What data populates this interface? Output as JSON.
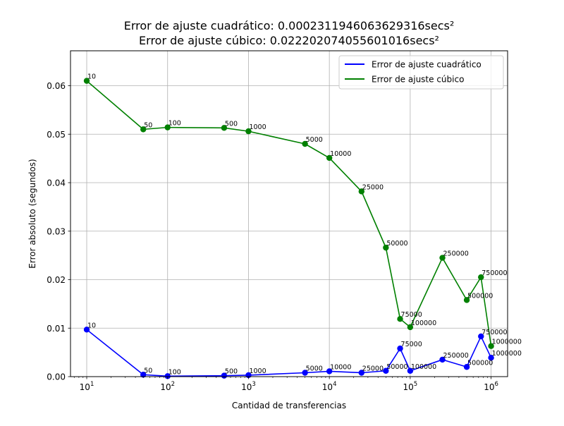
{
  "chart_data": {
    "type": "line",
    "title_lines": [
      "Error de ajuste cuadrático: 0.0002311946063629316secs²",
      "Error de ajuste cúbico: 0.022202074055601016secs²"
    ],
    "xlabel": "Cantidad de transferencias",
    "ylabel": "Error absoluto (segundos)",
    "x_scale": "log",
    "xlim": [
      6.3,
      1600000
    ],
    "ylim": [
      0,
      0.0672
    ],
    "grid": true,
    "legend_position": "top-right",
    "x_ticks": [
      {
        "value": 10,
        "base": "10",
        "exp": "1"
      },
      {
        "value": 100,
        "base": "10",
        "exp": "2"
      },
      {
        "value": 1000,
        "base": "10",
        "exp": "3"
      },
      {
        "value": 10000,
        "base": "10",
        "exp": "4"
      },
      {
        "value": 100000,
        "base": "10",
        "exp": "5"
      },
      {
        "value": 1000000,
        "base": "10",
        "exp": "6"
      }
    ],
    "y_ticks": [
      {
        "value": 0.0,
        "label": "0.00"
      },
      {
        "value": 0.01,
        "label": "0.01"
      },
      {
        "value": 0.02,
        "label": "0.02"
      },
      {
        "value": 0.03,
        "label": "0.03"
      },
      {
        "value": 0.04,
        "label": "0.04"
      },
      {
        "value": 0.05,
        "label": "0.05"
      },
      {
        "value": 0.06,
        "label": "0.06"
      }
    ],
    "x": [
      10,
      50,
      100,
      500,
      1000,
      5000,
      10000,
      25000,
      50000,
      75000,
      100000,
      250000,
      500000,
      750000,
      1000000
    ],
    "point_labels": [
      "10",
      "50",
      "100",
      "500",
      "1000",
      "5000",
      "10000",
      "25000",
      "50000",
      "75000",
      "100000",
      "250000",
      "500000",
      "750000",
      "1000000"
    ],
    "series": [
      {
        "name": "Error de ajuste cuadrático",
        "color": "#0000ff",
        "values": [
          0.0097,
          0.0004,
          0.0001,
          0.0002,
          0.0003,
          0.0008,
          0.0011,
          0.0008,
          0.0012,
          0.0058,
          0.0012,
          0.0035,
          0.002,
          0.0083,
          0.0039
        ]
      },
      {
        "name": "Error de ajuste cúbico",
        "color": "#008000",
        "values": [
          0.061,
          0.051,
          0.0514,
          0.0513,
          0.0506,
          0.048,
          0.0451,
          0.0382,
          0.0266,
          0.0119,
          0.0102,
          0.0245,
          0.0158,
          0.0205,
          0.0063
        ]
      }
    ]
  }
}
